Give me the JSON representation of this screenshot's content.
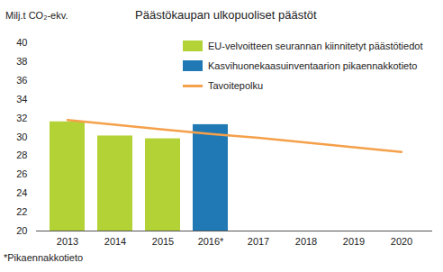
{
  "chart_data": {
    "type": "bar",
    "title": "Päästökaupan ulkopuoliset päästöt",
    "ylabel": "Milj.t CO₂-ekv.",
    "caption": "*Pikaennakkotieto",
    "categories": [
      "2013",
      "2014",
      "2015",
      "2016*",
      "2017",
      "2018",
      "2019",
      "2020"
    ],
    "series": [
      {
        "name": "EU-velvoitteen seurannan kiinnitetyt päästötiedot",
        "type": "bar",
        "color": "#b2d236",
        "values": [
          31.6,
          30.1,
          29.8,
          null,
          null,
          null,
          null,
          null
        ]
      },
      {
        "name": "Kasvihuonekaasuinventaarion pikaennakkotieto",
        "type": "bar",
        "color": "#2079b4",
        "values": [
          null,
          null,
          null,
          31.3,
          null,
          null,
          null,
          null
        ]
      },
      {
        "name": "Tavoitepolku",
        "type": "line",
        "color": "#f5a04a",
        "values": [
          31.8,
          31.3,
          30.8,
          30.3,
          29.9,
          29.4,
          28.9,
          28.4
        ]
      }
    ],
    "ylim": [
      20,
      40
    ],
    "yticks": [
      20,
      22,
      24,
      26,
      28,
      30,
      32,
      34,
      36,
      38,
      40
    ],
    "grid": false,
    "legend": "top-right"
  }
}
